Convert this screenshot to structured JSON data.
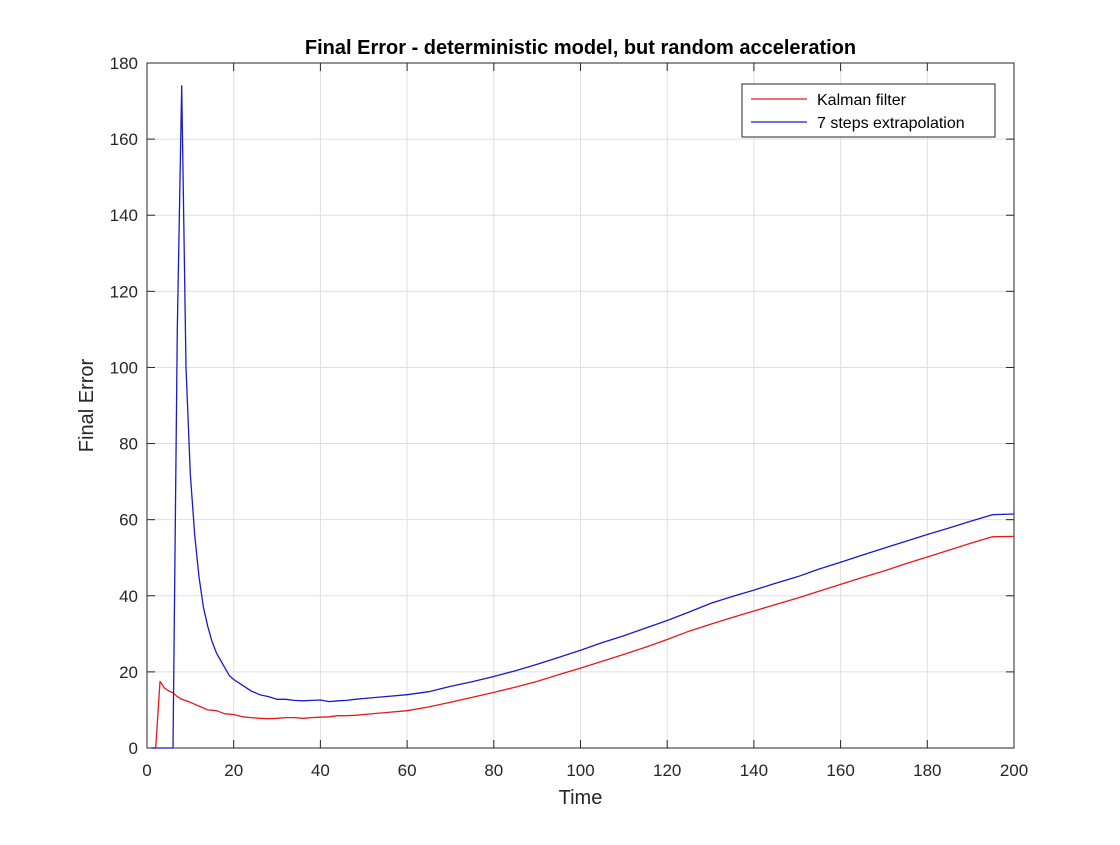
{
  "chart_data": {
    "type": "line",
    "title": "Final Error - deterministic model, but random acceleration",
    "xlabel": "Time",
    "ylabel": "Final Error",
    "xlim": [
      0,
      200
    ],
    "ylim": [
      0,
      180
    ],
    "xticks": [
      0,
      20,
      40,
      60,
      80,
      100,
      120,
      140,
      160,
      180,
      200
    ],
    "yticks": [
      0,
      20,
      40,
      60,
      80,
      100,
      120,
      140,
      160,
      180
    ],
    "grid": true,
    "legend_position": "top-right",
    "series": [
      {
        "name": "Kalman filter",
        "color": "#e41a1c",
        "x": [
          1,
          2,
          3,
          4,
          5,
          6,
          7,
          8,
          9,
          10,
          12,
          14,
          16,
          18,
          20,
          22,
          24,
          26,
          28,
          30,
          32,
          34,
          36,
          38,
          40,
          42,
          44,
          46,
          48,
          50,
          55,
          60,
          65,
          70,
          75,
          80,
          85,
          90,
          95,
          100,
          105,
          110,
          115,
          120,
          125,
          130,
          135,
          140,
          145,
          150,
          155,
          160,
          165,
          170,
          175,
          180,
          185,
          190,
          195,
          200
        ],
        "y": [
          0,
          0,
          17.5,
          15.8,
          15.0,
          14.5,
          13.5,
          12.8,
          12.4,
          12.0,
          11.0,
          10.0,
          9.8,
          9.0,
          8.8,
          8.2,
          8.0,
          7.8,
          7.7,
          7.8,
          8.0,
          8.0,
          7.8,
          8.0,
          8.1,
          8.2,
          8.5,
          8.5,
          8.6,
          8.8,
          9.3,
          9.8,
          10.8,
          12.0,
          13.3,
          14.6,
          16.0,
          17.5,
          19.3,
          21.0,
          22.8,
          24.6,
          26.5,
          28.5,
          30.7,
          32.5,
          34.3,
          36.0,
          37.7,
          39.4,
          41.2,
          43.0,
          44.8,
          46.5,
          48.4,
          50.2,
          52.0,
          53.8,
          55.5,
          55.6
        ]
      },
      {
        "name": "7 steps extrapolation",
        "color": "#1a1ac8",
        "x": [
          1,
          2,
          3,
          4,
          5,
          6,
          7,
          8,
          9,
          10,
          11,
          12,
          13,
          14,
          15,
          16,
          17,
          18,
          19,
          20,
          22,
          24,
          26,
          28,
          30,
          32,
          34,
          36,
          38,
          40,
          42,
          44,
          46,
          48,
          50,
          55,
          60,
          65,
          70,
          75,
          80,
          85,
          90,
          95,
          100,
          105,
          110,
          115,
          120,
          125,
          130,
          135,
          140,
          145,
          150,
          155,
          160,
          165,
          170,
          175,
          180,
          185,
          190,
          195,
          200
        ],
        "y": [
          0,
          0,
          0,
          0,
          0,
          0,
          110,
          174,
          100,
          72,
          56,
          45,
          37,
          32,
          28,
          25,
          23,
          21,
          19,
          18,
          16.5,
          15,
          14,
          13.5,
          12.8,
          12.8,
          12.5,
          12.4,
          12.5,
          12.6,
          12.2,
          12.4,
          12.5,
          12.8,
          13.0,
          13.5,
          14.0,
          14.8,
          16.2,
          17.4,
          18.8,
          20.3,
          22.0,
          23.8,
          25.7,
          27.7,
          29.5,
          31.5,
          33.5,
          35.7,
          38.0,
          39.8,
          41.5,
          43.3,
          45.0,
          47.0,
          48.8,
          50.7,
          52.5,
          54.3,
          56.1,
          57.8,
          59.6,
          61.3,
          61.5
        ]
      }
    ]
  }
}
